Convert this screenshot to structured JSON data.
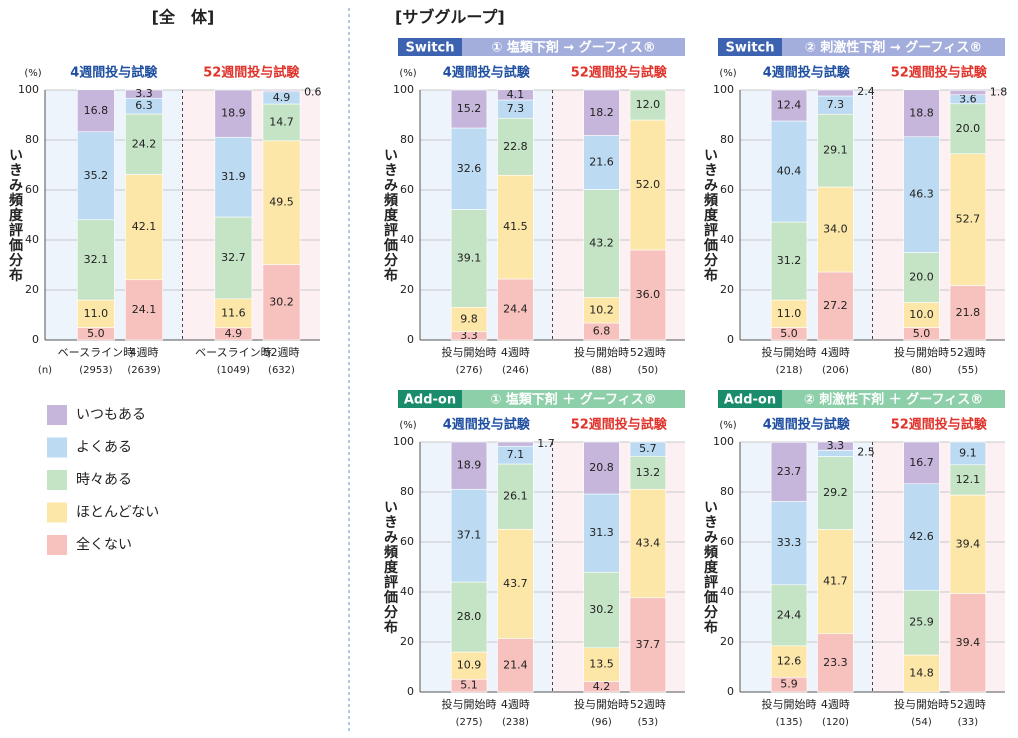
{
  "headings": [
    "[全　体]",
    "[サブグループ]"
  ],
  "chart_data": [
    {
      "type": "bar",
      "stacked": true,
      "ylabel": "いきみ頻度評価分布",
      "y_unit": "(%)",
      "n_label": "(n)",
      "groups": [
        "4週間投与試験",
        "52週間投与試験"
      ],
      "group_colors": [
        "#1f4fa0",
        "#e0332b"
      ],
      "categories": [
        "ベースライン時",
        "4週時",
        "ベースライン時",
        "52週時"
      ],
      "n": [
        "(2953)",
        "(2639)",
        "(1049)",
        "(632)"
      ],
      "ylim": [
        0,
        100
      ],
      "yticks": [
        0,
        20,
        40,
        60,
        80,
        100
      ],
      "grid": true,
      "series": [
        {
          "name": "いつもある",
          "color": "#c6b6dc",
          "values": [
            16.8,
            3.3,
            18.9,
            0.6
          ],
          "value_labels": [
            "16.8",
            "3.3",
            "18.9",
            "0.6"
          ]
        },
        {
          "name": "よくある",
          "color": "#bcdaf2",
          "values": [
            35.2,
            6.3,
            31.9,
            4.9
          ],
          "value_labels": [
            "35.2",
            "6.3",
            "31.9",
            "4.9"
          ]
        },
        {
          "name": "時々ある",
          "color": "#c5e3c5",
          "values": [
            32.1,
            24.2,
            32.7,
            14.7
          ],
          "value_labels": [
            "32.1",
            "24.2",
            "32.7",
            "14.7"
          ]
        },
        {
          "name": "ほとんどない",
          "color": "#fce7a8",
          "values": [
            11,
            42.1,
            11.6,
            49.5
          ],
          "value_labels": [
            "11.0",
            "42.1",
            "11.6",
            "49.5"
          ]
        },
        {
          "name": "全くない",
          "color": "#f7c1be",
          "values": [
            5,
            24.1,
            4.9,
            30.2
          ],
          "value_labels": [
            "5.0",
            "24.1",
            "4.9",
            "30.2"
          ]
        }
      ]
    },
    {
      "type": "bar",
      "stacked": true,
      "panel_tag": "Switch",
      "subtitle": "① 塩類下剤 → グーフィス®",
      "tag_color": "#3c62b0",
      "band_color": "#a3aedc",
      "ylabel": "いきみ頻度評価分布",
      "y_unit": "(%)",
      "groups": [
        "4週間投与試験",
        "52週間投与試験"
      ],
      "group_colors": [
        "#1f4fa0",
        "#e0332b"
      ],
      "categories": [
        "投与開始時",
        "4週時",
        "投与開始時",
        "52週時"
      ],
      "n": [
        "(276)",
        "(246)",
        "(88)",
        "(50)"
      ],
      "ylim": [
        0,
        100
      ],
      "yticks": [
        0,
        20,
        40,
        60,
        80,
        100
      ],
      "grid": true,
      "series": [
        {
          "name": "いつもある",
          "color": "#c6b6dc",
          "values": [
            15.2,
            4.1,
            18.2,
            null
          ],
          "value_labels": [
            "15.2",
            "4.1",
            "18.2",
            null
          ]
        },
        {
          "name": "よくある",
          "color": "#bcdaf2",
          "values": [
            32.6,
            7.3,
            21.6,
            null
          ],
          "value_labels": [
            "32.6",
            "7.3",
            "21.6",
            null
          ]
        },
        {
          "name": "時々ある",
          "color": "#c5e3c5",
          "values": [
            39.1,
            22.8,
            43.2,
            12
          ],
          "value_labels": [
            "39.1",
            "22.8",
            "43.2",
            "12.0"
          ]
        },
        {
          "name": "ほとんどない",
          "color": "#fce7a8",
          "values": [
            9.8,
            41.5,
            10.2,
            52
          ],
          "value_labels": [
            "9.8",
            "41.5",
            "10.2",
            "52.0"
          ]
        },
        {
          "name": "全くない",
          "color": "#f7c1be",
          "values": [
            3.3,
            24.4,
            6.8,
            36
          ],
          "value_labels": [
            "3.3",
            "24.4",
            "6.8",
            "36.0"
          ]
        }
      ]
    },
    {
      "type": "bar",
      "stacked": true,
      "panel_tag": "Switch",
      "subtitle": "② 刺激性下剤 → グーフィス®",
      "tag_color": "#3c62b0",
      "band_color": "#a3aedc",
      "ylabel": "いきみ頻度評価分布",
      "y_unit": "(%)",
      "groups": [
        "4週間投与試験",
        "52週間投与試験"
      ],
      "group_colors": [
        "#1f4fa0",
        "#e0332b"
      ],
      "categories": [
        "投与開始時",
        "4週時",
        "投与開始時",
        "52週時"
      ],
      "n": [
        "(218)",
        "(206)",
        "(80)",
        "(55)"
      ],
      "ylim": [
        0,
        100
      ],
      "yticks": [
        0,
        20,
        40,
        60,
        80,
        100
      ],
      "grid": true,
      "series": [
        {
          "name": "いつもある",
          "color": "#c6b6dc",
          "values": [
            12.4,
            2.4,
            18.8,
            1.8
          ],
          "value_labels": [
            "12.4",
            "2.4",
            "18.8",
            "1.8"
          ]
        },
        {
          "name": "よくある",
          "color": "#bcdaf2",
          "values": [
            40.4,
            7.3,
            46.3,
            3.6
          ],
          "value_labels": [
            "40.4",
            "7.3",
            "46.3",
            "3.6"
          ]
        },
        {
          "name": "時々ある",
          "color": "#c5e3c5",
          "values": [
            31.2,
            29.1,
            20,
            20
          ],
          "value_labels": [
            "31.2",
            "29.1",
            "20.0",
            "20.0"
          ]
        },
        {
          "name": "ほとんどない",
          "color": "#fce7a8",
          "values": [
            11,
            34,
            10,
            52.7
          ],
          "value_labels": [
            "11.0",
            "34.0",
            "10.0",
            "52.7"
          ]
        },
        {
          "name": "全くない",
          "color": "#f7c1be",
          "values": [
            5,
            27.2,
            5,
            21.8
          ],
          "value_labels": [
            "5.0",
            "27.2",
            "5.0",
            "21.8"
          ]
        }
      ]
    },
    {
      "type": "bar",
      "stacked": true,
      "panel_tag": "Add-on",
      "subtitle": "① 塩類下剤 ＋ グーフィス®",
      "tag_color": "#1a8c6b",
      "band_color": "#8ccfa8",
      "ylabel": "いきみ頻度評価分布",
      "y_unit": "(%)",
      "groups": [
        "4週間投与試験",
        "52週間投与試験"
      ],
      "group_colors": [
        "#1f4fa0",
        "#e0332b"
      ],
      "categories": [
        "投与開始時",
        "4週時",
        "投与開始時",
        "52週時"
      ],
      "n": [
        "(275)",
        "(238)",
        "(96)",
        "(53)"
      ],
      "ylim": [
        0,
        100
      ],
      "yticks": [
        0,
        20,
        40,
        60,
        80,
        100
      ],
      "grid": true,
      "series": [
        {
          "name": "いつもある",
          "color": "#c6b6dc",
          "values": [
            18.9,
            1.7,
            20.8,
            null
          ],
          "value_labels": [
            "18.9",
            "1.7",
            "20.8",
            null
          ]
        },
        {
          "name": "よくある",
          "color": "#bcdaf2",
          "values": [
            37.1,
            7.1,
            31.3,
            5.7
          ],
          "value_labels": [
            "37.1",
            "7.1",
            "31.3",
            "5.7"
          ]
        },
        {
          "name": "時々ある",
          "color": "#c5e3c5",
          "values": [
            28,
            26.1,
            30.2,
            13.2
          ],
          "value_labels": [
            "28.0",
            "26.1",
            "30.2",
            "13.2"
          ]
        },
        {
          "name": "ほとんどない",
          "color": "#fce7a8",
          "values": [
            10.9,
            43.7,
            13.5,
            43.4
          ],
          "value_labels": [
            "10.9",
            "43.7",
            "13.5",
            "43.4"
          ]
        },
        {
          "name": "全くない",
          "color": "#f7c1be",
          "values": [
            5.1,
            21.4,
            4.2,
            37.7
          ],
          "value_labels": [
            "5.1",
            "21.4",
            "4.2",
            "37.7"
          ]
        }
      ]
    },
    {
      "type": "bar",
      "stacked": true,
      "panel_tag": "Add-on",
      "subtitle": "② 刺激性下剤 ＋ グーフィス®",
      "tag_color": "#1a8c6b",
      "band_color": "#8ccfa8",
      "ylabel": "いきみ頻度評価分布",
      "y_unit": "(%)",
      "groups": [
        "4週間投与試験",
        "52週間投与試験"
      ],
      "group_colors": [
        "#1f4fa0",
        "#e0332b"
      ],
      "categories": [
        "投与開始時",
        "4週時",
        "投与開始時",
        "52週時"
      ],
      "n": [
        "(135)",
        "(120)",
        "(54)",
        "(33)"
      ],
      "ylim": [
        0,
        100
      ],
      "yticks": [
        0,
        20,
        40,
        60,
        80,
        100
      ],
      "grid": true,
      "series": [
        {
          "name": "いつもある",
          "color": "#c6b6dc",
          "values": [
            23.7,
            3.3,
            16.7,
            null
          ],
          "value_labels": [
            "23.7",
            "3.3",
            "16.7",
            null
          ]
        },
        {
          "name": "よくある",
          "color": "#bcdaf2",
          "values": [
            33.3,
            2.5,
            42.6,
            9.1
          ],
          "value_labels": [
            "33.3",
            "2.5",
            "42.6",
            "9.1"
          ]
        },
        {
          "name": "時々ある",
          "color": "#c5e3c5",
          "values": [
            24.4,
            29.2,
            25.9,
            12.1
          ],
          "value_labels": [
            "24.4",
            "29.2",
            "25.9",
            "12.1"
          ]
        },
        {
          "name": "ほとんどない",
          "color": "#fce7a8",
          "values": [
            12.6,
            41.7,
            14.8,
            39.4
          ],
          "value_labels": [
            "12.6",
            "41.7",
            "14.8",
            "39.4"
          ]
        },
        {
          "name": "全くない",
          "color": "#f7c1be",
          "values": [
            5.9,
            23.3,
            null,
            39.4
          ],
          "value_labels": [
            "5.9",
            "23.3",
            null,
            "39.4"
          ]
        }
      ]
    }
  ]
}
